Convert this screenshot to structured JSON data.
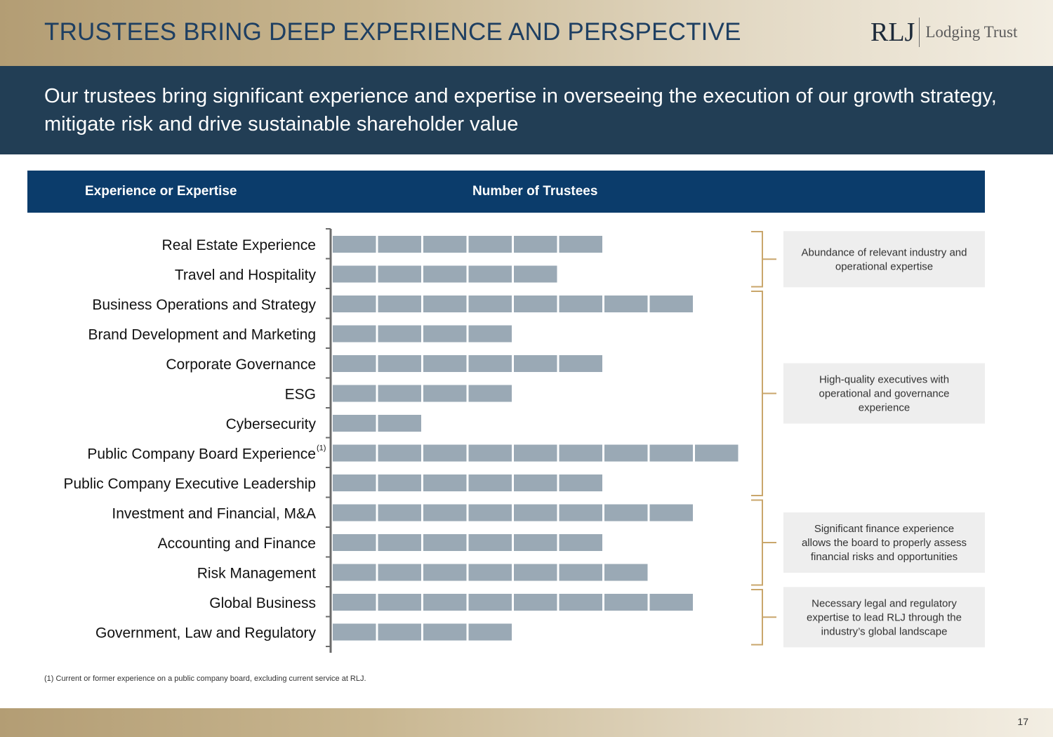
{
  "page": {
    "title": "TRUSTEES BRING DEEP EXPERIENCE AND PERSPECTIVE",
    "logo": {
      "mark": "RLJ",
      "text": "Lodging Trust"
    },
    "subtitle": "Our trustees bring significant experience and expertise in overseeing the execution of our growth strategy, mitigate risk and drive sustainable shareholder value",
    "footnote": "(1)   Current or former experience on a public company board, excluding current service at RLJ.",
    "page_number": "17"
  },
  "colors": {
    "band_dark": "#223e55",
    "header_blue": "#0b3c6b",
    "bar": "#9aa9b5",
    "bracket": "#c9a66b",
    "callout_bg": "#eeeeee"
  },
  "chart_data": {
    "type": "bar",
    "orientation": "horizontal",
    "column_headers": [
      "Experience or Expertise",
      "Number of Trustees"
    ],
    "categories": [
      "Real Estate Experience",
      "Travel and Hospitality",
      "Business Operations and Strategy",
      "Brand Development and Marketing",
      "Corporate Governance",
      "ESG",
      "Cybersecurity",
      "Public Company Board Experience",
      "Public Company Executive Leadership",
      "Investment and Financial, M&A",
      "Accounting and Finance",
      "Risk Management",
      "Global Business",
      "Government, Law and Regulatory"
    ],
    "category_notes": [
      "",
      "",
      "",
      "",
      "",
      "",
      "",
      "(1)",
      "",
      "",
      "",
      "",
      "",
      ""
    ],
    "values": [
      6,
      5,
      8,
      4,
      6,
      4,
      2,
      9,
      6,
      8,
      6,
      7,
      8,
      4
    ],
    "unit": "trustees",
    "xlim": [
      0,
      9
    ],
    "groups": [
      {
        "from": 0,
        "to": 1,
        "text": "Abundance of relevant industry and operational expertise"
      },
      {
        "from": 2,
        "to": 8,
        "text": "High-quality executives with operational and governance experience"
      },
      {
        "from": 9,
        "to": 11,
        "text": "Significant finance experience allows the board to properly assess financial risks and opportunities"
      },
      {
        "from": 12,
        "to": 13,
        "text": "Necessary legal and regulatory expertise to lead RLJ through the industry’s global landscape"
      }
    ]
  }
}
